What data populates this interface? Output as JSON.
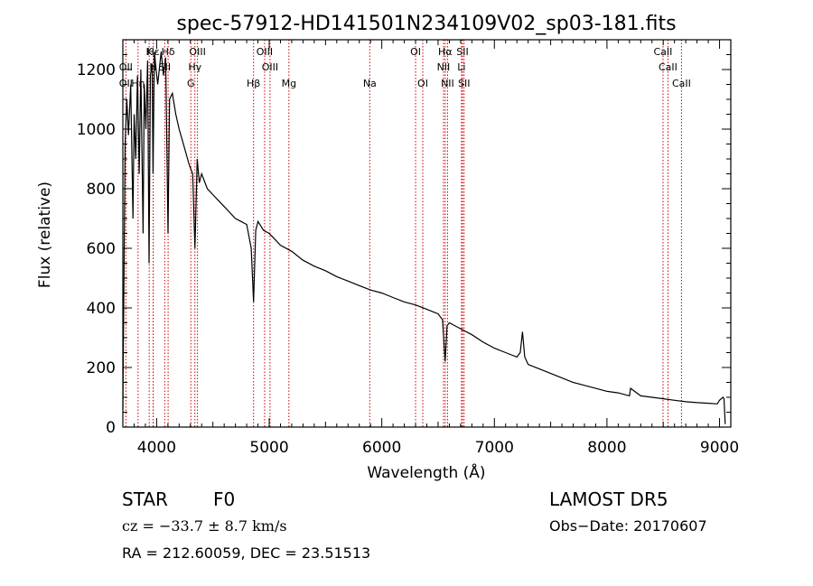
{
  "chart_data": {
    "type": "line",
    "title": "spec-57912-HD141501N234109V02_sp03-181.fits",
    "xlabel": "Wavelength (Å)",
    "ylabel": "Flux (relative)",
    "xlim": [
      3700,
      9100
    ],
    "ylim": [
      0,
      1300
    ],
    "xticks": [
      4000,
      5000,
      6000,
      7000,
      8000,
      9000
    ],
    "yticks": [
      0,
      200,
      400,
      600,
      800,
      1000,
      1200
    ],
    "grid": false,
    "line_color": "#000000",
    "marker_color": "#cc0000",
    "series": [
      {
        "x": [
          3700,
          3720,
          3735,
          3750,
          3770,
          3790,
          3800,
          3815,
          3830,
          3845,
          3860,
          3880,
          3890,
          3905,
          3920,
          3933,
          3945,
          3960,
          3968,
          3980,
          3995,
          4010,
          4040,
          4060,
          4080,
          4101,
          4115,
          4140,
          4170,
          4200,
          4230,
          4260,
          4290,
          4320,
          4340,
          4360,
          4380,
          4400,
          4450,
          4500,
          4550,
          4600,
          4650,
          4700,
          4750,
          4800,
          4840,
          4861,
          4880,
          4900,
          4950,
          5000,
          5050,
          5100,
          5200,
          5300,
          5400,
          5500,
          5600,
          5700,
          5800,
          5900,
          6000,
          6100,
          6200,
          6300,
          6400,
          6500,
          6540,
          6563,
          6580,
          6600,
          6700,
          6800,
          6900,
          7000,
          7100,
          7200,
          7230,
          7250,
          7270,
          7300,
          7400,
          7500,
          7600,
          7700,
          7800,
          7900,
          8000,
          8100,
          8200,
          8210,
          8300,
          8400,
          8500,
          8600,
          8700,
          8800,
          8900,
          8980,
          9000,
          9030,
          9040,
          9050
        ],
        "y": [
          60,
          950,
          1100,
          980,
          1150,
          700,
          1050,
          900,
          1180,
          850,
          1200,
          650,
          1150,
          1000,
          1230,
          550,
          1180,
          1220,
          850,
          1260,
          1200,
          1150,
          1260,
          1180,
          1240,
          650,
          1100,
          1120,
          1050,
          1000,
          960,
          920,
          880,
          850,
          600,
          900,
          820,
          850,
          800,
          780,
          760,
          740,
          720,
          700,
          690,
          680,
          600,
          420,
          660,
          690,
          660,
          650,
          630,
          610,
          590,
          560,
          540,
          525,
          505,
          490,
          475,
          460,
          450,
          435,
          420,
          410,
          395,
          380,
          360,
          220,
          340,
          350,
          330,
          310,
          285,
          265,
          250,
          235,
          250,
          320,
          235,
          210,
          195,
          180,
          165,
          150,
          140,
          130,
          120,
          115,
          105,
          130,
          105,
          100,
          95,
          90,
          85,
          82,
          80,
          78,
          90,
          100,
          95,
          10
        ]
      }
    ],
    "lines_top": [
      {
        "label": "Hε",
        "x": 3970
      },
      {
        "label": "K",
        "x": 3934
      },
      {
        "label": "Hδ",
        "x": 4102
      },
      {
        "label": "OIII",
        "x": 4363
      },
      {
        "label": "OIII",
        "x": 4959
      },
      {
        "label": "OI",
        "x": 6300
      },
      {
        "label": "Hα",
        "x": 6563
      },
      {
        "label": "SII",
        "x": 6717
      },
      {
        "label": "CaII",
        "x": 8498
      }
    ],
    "lines_mid": [
      {
        "label": "OII",
        "x": 3727
      },
      {
        "label": "H",
        "x": 3969
      },
      {
        "label": "SII",
        "x": 4072
      },
      {
        "label": "Hγ",
        "x": 4340
      },
      {
        "label": "OIII",
        "x": 5007
      },
      {
        "label": "NII",
        "x": 6548
      },
      {
        "label": "Li",
        "x": 6708
      },
      {
        "label": "CaII",
        "x": 8542
      }
    ],
    "lines_low": [
      {
        "label": "OII",
        "x": 3727
      },
      {
        "label": "Hη",
        "x": 3835
      },
      {
        "label": "G",
        "x": 4304
      },
      {
        "label": "Hβ",
        "x": 4861
      },
      {
        "label": "Mg",
        "x": 5175
      },
      {
        "label": "Na",
        "x": 5893
      },
      {
        "label": "OI",
        "x": 6364
      },
      {
        "label": "NII",
        "x": 6584
      },
      {
        "label": "SII",
        "x": 6731
      },
      {
        "label": "CaII",
        "x": 8662
      }
    ]
  },
  "info": {
    "object_class": "STAR",
    "subclass": "F0",
    "survey": "LAMOST DR5",
    "redshift": "cz = −33.7 ± 8.7 km/s",
    "obs_date": "Obs−Date: 20170607",
    "coords": "RA = 212.60059, DEC =  23.51513"
  }
}
